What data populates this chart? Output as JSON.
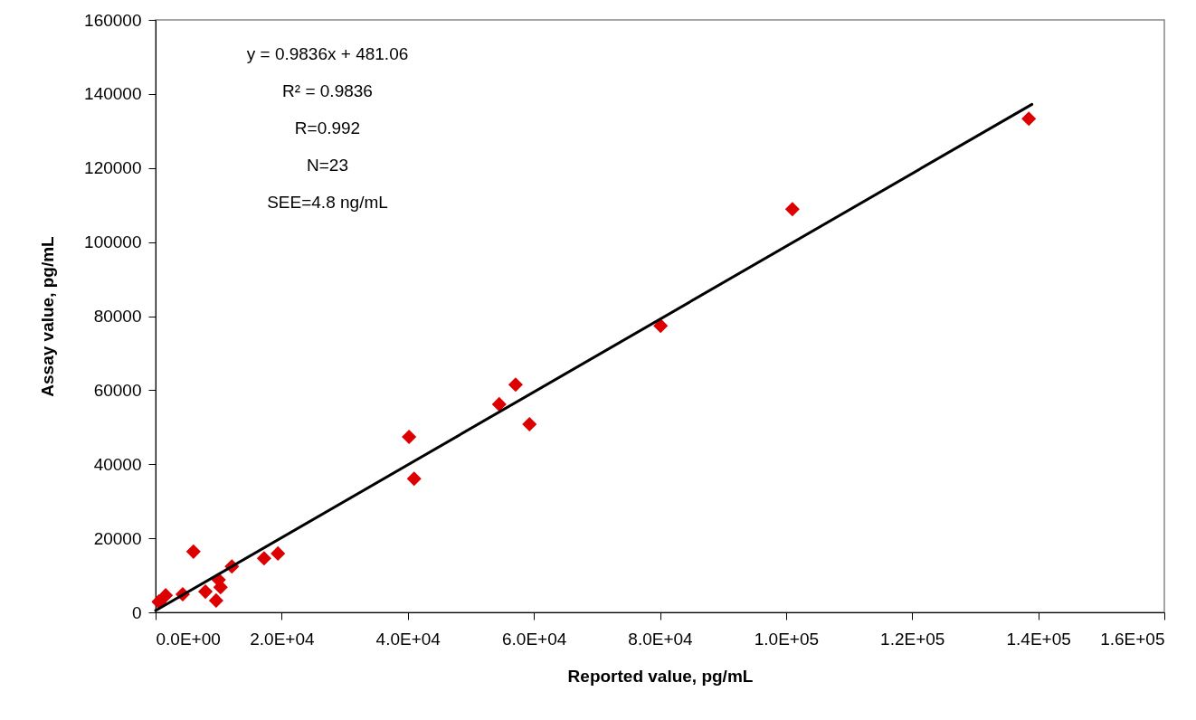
{
  "chart_data": {
    "type": "scatter",
    "xlabel": "Reported value, pg/mL",
    "ylabel": "Assay value, pg/mL",
    "xlim": [
      0,
      160000
    ],
    "ylim": [
      0,
      160000
    ],
    "xticks": [
      {
        "value": 0,
        "label": "0.0E+00"
      },
      {
        "value": 20000,
        "label": "2.0E+04"
      },
      {
        "value": 40000,
        "label": "4.0E+04"
      },
      {
        "value": 60000,
        "label": "6.0E+04"
      },
      {
        "value": 80000,
        "label": "8.0E+04"
      },
      {
        "value": 100000,
        "label": "1.0E+05"
      },
      {
        "value": 120000,
        "label": "1.2E+05"
      },
      {
        "value": 140000,
        "label": "1.4E+05"
      },
      {
        "value": 160000,
        "label": "1.6E+05"
      }
    ],
    "yticks": [
      0,
      20000,
      40000,
      60000,
      80000,
      100000,
      120000,
      140000,
      160000
    ],
    "grid": false,
    "series": [
      {
        "color": "#dd0000",
        "marker": "diamond",
        "x": [
          500,
          600,
          1600,
          4300,
          6000,
          7900,
          9600,
          10000,
          10300,
          12100,
          17200,
          19400,
          40200,
          41000,
          54500,
          57100,
          59300,
          80100,
          101000,
          138500
        ],
        "values": [
          2900,
          2700,
          4600,
          4900,
          16400,
          5600,
          3200,
          8800,
          6800,
          12400,
          14600,
          15900,
          47400,
          36100,
          56200,
          61500,
          50800,
          77400,
          108900,
          133300
        ]
      },
      {
        "type": "line",
        "color": "#000000",
        "line_style": "solid",
        "x": [
          0,
          139000
        ],
        "values": [
          500,
          137200
        ]
      }
    ],
    "annotations": [
      "y = 0.9836x + 481.06",
      "R² = 0.9836",
      "R=0.992",
      "N=23",
      "SEE=4.8 ng/mL"
    ]
  }
}
